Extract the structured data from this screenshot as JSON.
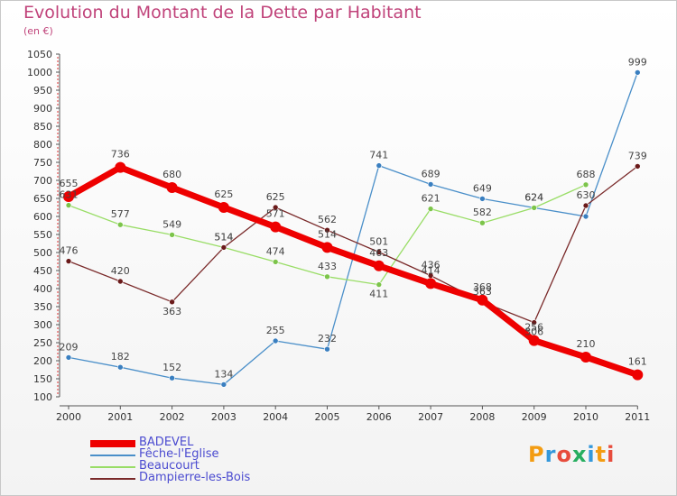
{
  "title": "Evolution du Montant de la Dette par Habitant",
  "unit": "(en €)",
  "logo_text": "Proxiti",
  "colors": {
    "title": "#c0437a",
    "axis": "#555555",
    "legend_text": "#4b4bd0"
  },
  "chart_data": {
    "type": "line",
    "title": "Evolution du Montant de la Dette par Habitant",
    "subtitle": "(en €)",
    "x": [
      "2000",
      "2001",
      "2002",
      "2003",
      "2004",
      "2005",
      "2006",
      "2007",
      "2008",
      "2009",
      "2010",
      "2011"
    ],
    "yticks": [
      100,
      150,
      200,
      250,
      300,
      350,
      400,
      450,
      500,
      550,
      600,
      650,
      700,
      750,
      800,
      850,
      900,
      950,
      1000,
      1050
    ],
    "ylim": [
      100,
      1050
    ],
    "grid": false,
    "legend_position": "bottom-left",
    "series": [
      {
        "name": "Fêche-l'Eglise",
        "color": "#4a8fc9",
        "point_color": "#3a7fc0",
        "values": [
          209,
          182,
          152,
          134,
          255,
          232,
          741,
          689,
          649,
          624,
          600,
          999
        ],
        "labels": [
          "209",
          "182",
          "152",
          "134",
          "255",
          "232",
          "741",
          "689",
          "649",
          "624",
          "",
          "999"
        ]
      },
      {
        "name": "Beaucourt",
        "color": "#99dd66",
        "point_color": "#7cc44a",
        "values": [
          631,
          577,
          549,
          514,
          474,
          433,
          411,
          621,
          582,
          624,
          688,
          null
        ],
        "labels": [
          "631",
          "577",
          "549",
          "514",
          "474",
          "433",
          "411",
          "621",
          "582",
          "624",
          "688",
          ""
        ]
      },
      {
        "name": "Dampierre-les-Bois",
        "color": "#7a2a2a",
        "point_color": "#6a1a1a",
        "values": [
          476,
          420,
          363,
          514,
          625,
          562,
          501,
          436,
          363,
          306,
          630,
          739
        ],
        "labels": [
          "476",
          "420",
          "363",
          "514",
          "625",
          "562",
          "501",
          "436",
          "363",
          "306",
          "630",
          "739"
        ]
      },
      {
        "name": "BADEVEL",
        "color": "#ee0000",
        "point_color": "#ee0000",
        "values": [
          655,
          736,
          680,
          625,
          571,
          514,
          463,
          414,
          368,
          256,
          210,
          161
        ],
        "labels": [
          "655",
          "736",
          "680",
          "625",
          "571",
          "514",
          "463",
          "414",
          "368",
          "256",
          "210",
          "161"
        ]
      }
    ],
    "legend": [
      {
        "name": "BADEVEL",
        "color": "#ee0000"
      },
      {
        "name": "Fêche-l'Eglise",
        "color": "#4a8fc9"
      },
      {
        "name": "Beaucourt",
        "color": "#99dd66"
      },
      {
        "name": "Dampierre-les-Bois",
        "color": "#7a2a2a"
      }
    ]
  }
}
